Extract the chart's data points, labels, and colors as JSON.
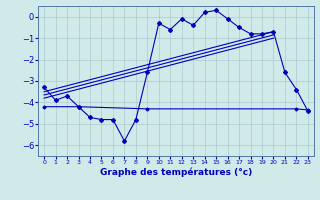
{
  "bg_color": "#d0eaea",
  "grid_color": "#a8cccc",
  "line_color": "#0000bb",
  "xlabel": "Graphe des températures (°c)",
  "xlim": [
    -0.5,
    23.5
  ],
  "ylim": [
    -6.5,
    0.5
  ],
  "yticks": [
    0,
    -1,
    -2,
    -3,
    -4,
    -5,
    -6
  ],
  "xticks": [
    0,
    1,
    2,
    3,
    4,
    5,
    6,
    7,
    8,
    9,
    10,
    11,
    12,
    13,
    14,
    15,
    16,
    17,
    18,
    19,
    20,
    21,
    22,
    23
  ],
  "main_x": [
    0,
    1,
    2,
    3,
    4,
    5,
    6,
    7,
    8,
    9,
    10,
    11,
    12,
    13,
    14,
    15,
    16,
    17,
    18,
    19,
    20,
    21,
    22,
    23
  ],
  "main_y": [
    -3.3,
    -3.9,
    -3.7,
    -4.2,
    -4.7,
    -4.8,
    -4.8,
    -5.8,
    -4.8,
    -2.6,
    -0.3,
    -0.6,
    -0.1,
    -0.4,
    0.2,
    0.3,
    -0.1,
    -0.5,
    -0.8,
    -0.8,
    -0.7,
    -2.6,
    -3.4,
    -4.4
  ],
  "trend_lines": [
    {
      "x": [
        0,
        20
      ],
      "y": [
        -3.5,
        -0.7
      ]
    },
    {
      "x": [
        0,
        20
      ],
      "y": [
        -3.65,
        -0.85
      ]
    },
    {
      "x": [
        0,
        20
      ],
      "y": [
        -3.8,
        -1.0
      ]
    }
  ],
  "flat_x": [
    0,
    3,
    9,
    22,
    23
  ],
  "flat_y": [
    -4.2,
    -4.2,
    -4.3,
    -4.3,
    -4.35
  ]
}
